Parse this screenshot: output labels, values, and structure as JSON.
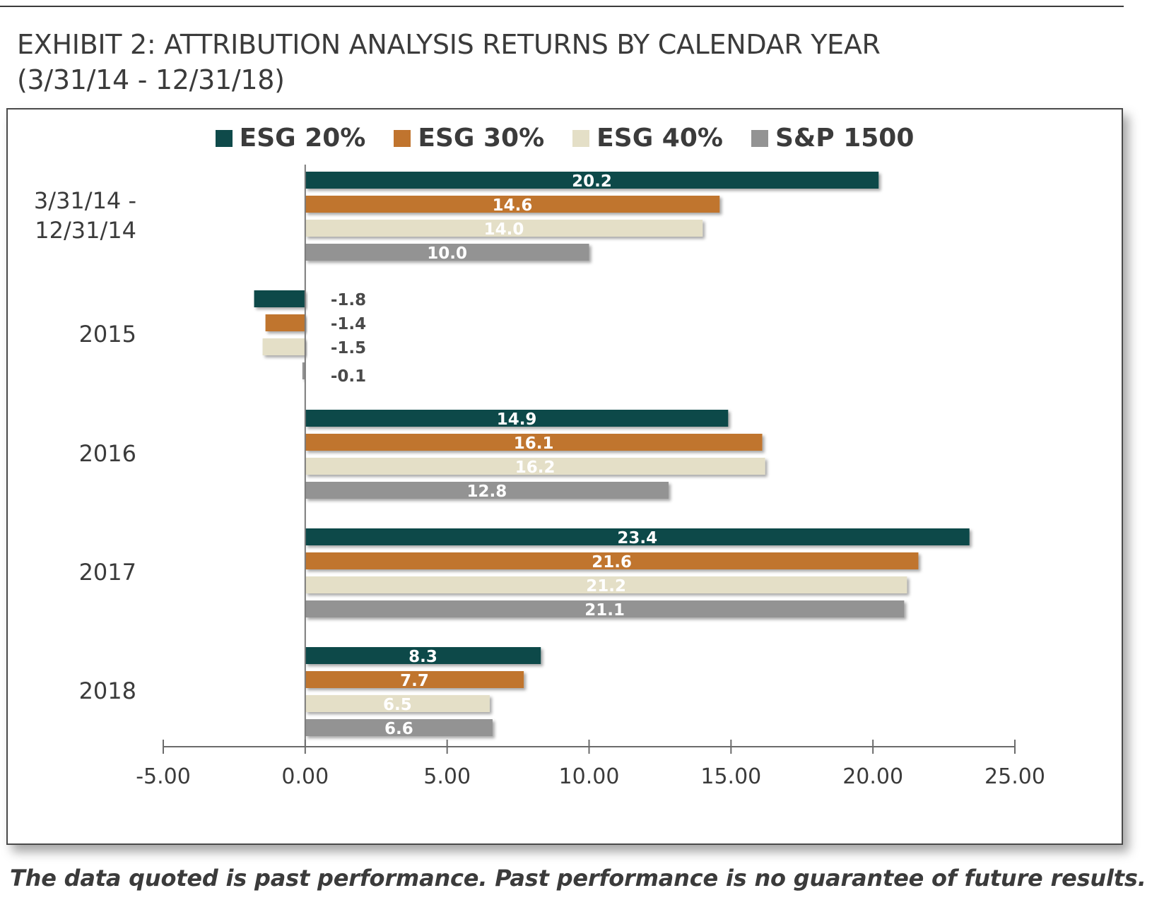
{
  "title": {
    "line1": "EXHIBIT 2: ATTRIBUTION ANALYSIS RETURNS BY CALENDAR YEAR",
    "line2": "(3/31/14 - 12/31/18)"
  },
  "footnote": "The data quoted is past performance. Past performance is no guarantee of future results.",
  "chart_data": {
    "type": "bar",
    "orientation": "horizontal",
    "categories": [
      [
        "3/31/14 -",
        "12/31/14"
      ],
      [
        "2015"
      ],
      [
        "2016"
      ],
      [
        "2017"
      ],
      [
        "2018"
      ]
    ],
    "series": [
      {
        "name": "ESG 20%",
        "color": "#0f4a4a",
        "label_color": "#ffffff",
        "values": [
          20.2,
          -1.8,
          14.9,
          23.4,
          8.3
        ],
        "labels": [
          "20.2",
          "-1.8",
          "14.9",
          "23.4",
          "8.3"
        ]
      },
      {
        "name": "ESG 30%",
        "color": "#c0742e",
        "label_color": "#ffffff",
        "values": [
          14.6,
          -1.4,
          16.1,
          21.6,
          7.7
        ],
        "labels": [
          "14.6",
          "-1.4",
          "16.1",
          "21.6",
          "7.7"
        ]
      },
      {
        "name": "ESG 40%",
        "color": "#e4dfc7",
        "label_color": "#ffffff",
        "values": [
          14.0,
          -1.5,
          16.2,
          21.2,
          6.5
        ],
        "labels": [
          "14.0",
          "-1.5",
          "16.2",
          "21.2",
          "6.5"
        ]
      },
      {
        "name": "S&P 1500",
        "color": "#939393",
        "label_color": "#ffffff",
        "values": [
          10.0,
          -0.1,
          12.8,
          21.1,
          6.6
        ],
        "labels": [
          "10.0",
          "-0.1",
          "12.8",
          "21.1",
          "6.6"
        ]
      }
    ],
    "negative_label_color": "#4a4a4a",
    "xlim": [
      -5,
      25
    ],
    "xticks": [
      -5,
      0,
      5,
      10,
      15,
      20,
      25
    ],
    "xtick_labels": [
      "-5.00",
      "0.00",
      "5.00",
      "10.00",
      "15.00",
      "20.00",
      "25.00"
    ],
    "legend_position": "top-center",
    "grid": false
  }
}
